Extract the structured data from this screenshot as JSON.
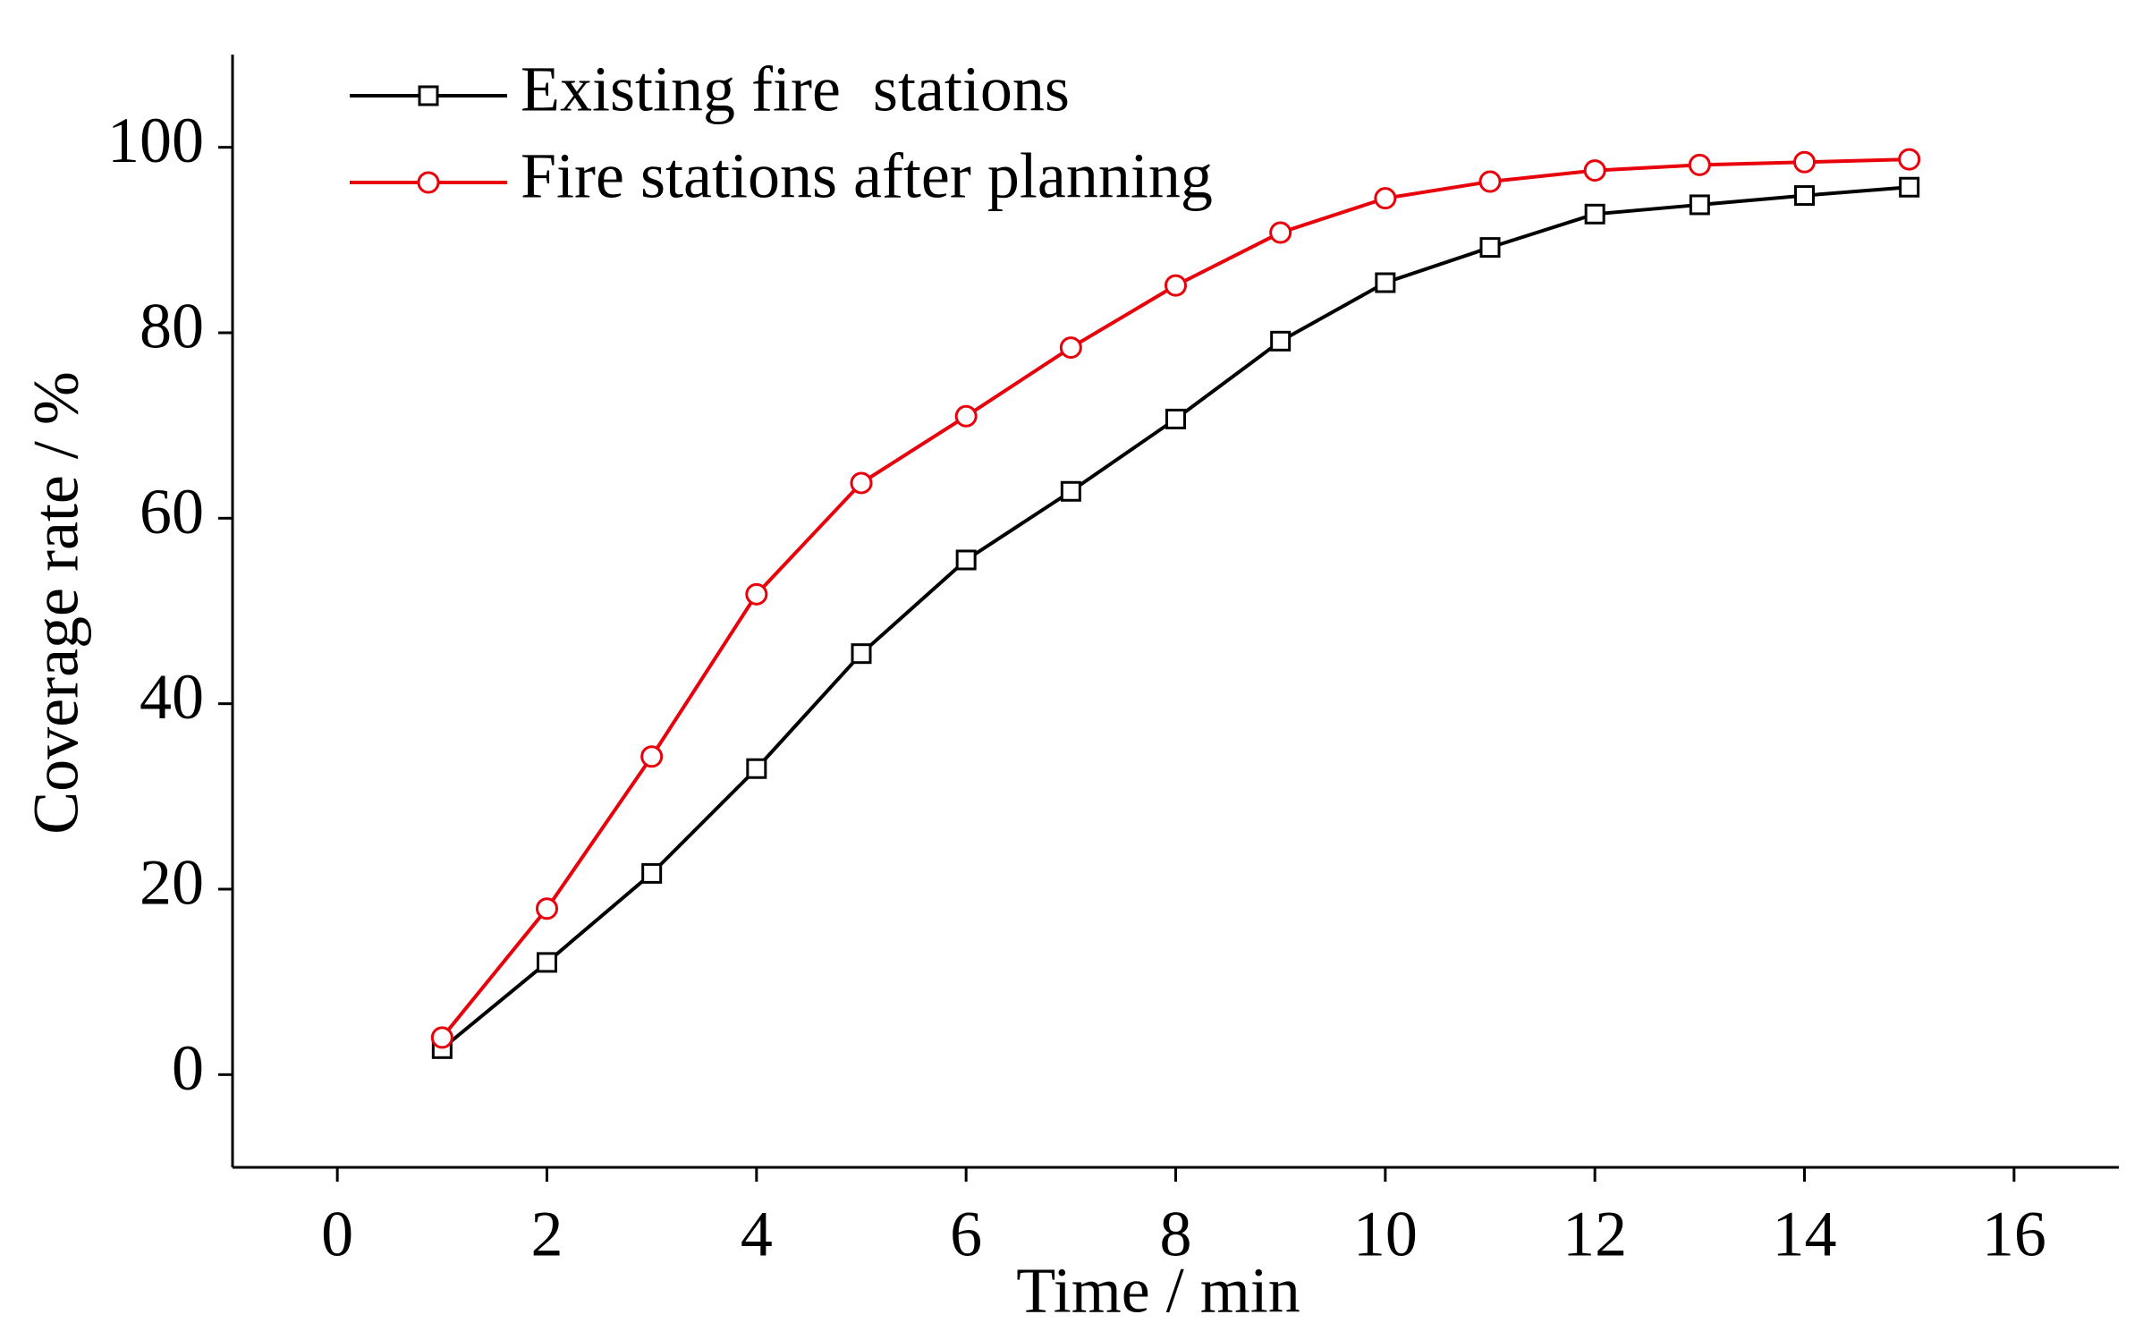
{
  "chart_data": {
    "type": "line",
    "x_label": "Time / min",
    "y_label": "Coverage rate / %",
    "x": [
      1,
      2,
      3,
      4,
      5,
      6,
      7,
      8,
      9,
      10,
      11,
      12,
      13,
      14,
      15
    ],
    "series": [
      {
        "name": "Existing fire  stations",
        "color": "#000000",
        "marker": "square",
        "values": [
          2.8,
          12.1,
          21.7,
          33,
          45.4,
          55.5,
          62.9,
          70.7,
          79.1,
          85.4,
          89.2,
          92.8,
          93.8,
          94.8,
          95.7
        ]
      },
      {
        "name": "Fire stations after planning",
        "color": "#e8000b",
        "marker": "circle",
        "values": [
          4,
          17.9,
          34.3,
          51.8,
          63.8,
          71,
          78.4,
          85.1,
          90.8,
          94.5,
          96.3,
          97.5,
          98.1,
          98.4,
          98.7
        ]
      }
    ],
    "xlim": [
      -1,
      17
    ],
    "xticks": [
      0,
      2,
      4,
      6,
      8,
      10,
      12,
      14,
      16
    ],
    "ylim": [
      -10,
      110
    ],
    "yticks": [
      0,
      20,
      40,
      60,
      80,
      100
    ],
    "grid": false,
    "legend": "upper left"
  }
}
